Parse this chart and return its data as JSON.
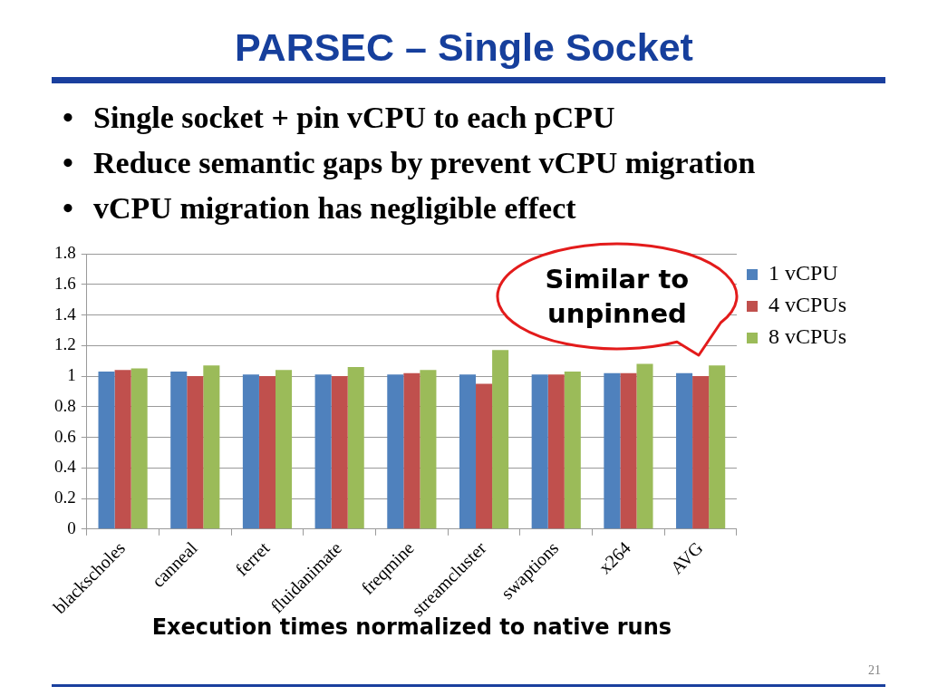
{
  "chart_data": {
    "type": "bar",
    "title": "PARSEC – Single Socket",
    "subtitle": "• Single socket + pin vCPU to each pCPU\n• Reduce semantic gaps by prevent vCPU migration\n• vCPU migration has negligible effect",
    "xlabel": "Execution times normalized to native runs",
    "categories": [
      "blackscholes",
      "canneal",
      "ferret",
      "fluidanimate",
      "freqmine",
      "streamcluster",
      "swaptions",
      "x264",
      "AVG"
    ],
    "series": [
      {
        "name": "1 vCPU",
        "color": "#4f81bd",
        "values": [
          1.03,
          1.03,
          1.01,
          1.01,
          1.01,
          1.01,
          1.01,
          1.02,
          1.02
        ]
      },
      {
        "name": "4 vCPUs",
        "color": "#c0504d",
        "values": [
          1.04,
          1.0,
          1.0,
          1.0,
          1.02,
          0.95,
          1.01,
          1.02,
          1.0
        ]
      },
      {
        "name": "8 vCPUs",
        "color": "#9bbb59",
        "values": [
          1.05,
          1.07,
          1.04,
          1.06,
          1.04,
          1.17,
          1.03,
          1.08,
          1.07
        ]
      }
    ],
    "ylim": [
      0,
      1.8
    ],
    "yticks": [
      0,
      0.2,
      0.4,
      0.6,
      0.8,
      1,
      1.2,
      1.4,
      1.6,
      1.8
    ],
    "grid": "y",
    "legend": "top right",
    "annotations": [
      "Similar to unpinned",
      "21"
    ]
  }
}
